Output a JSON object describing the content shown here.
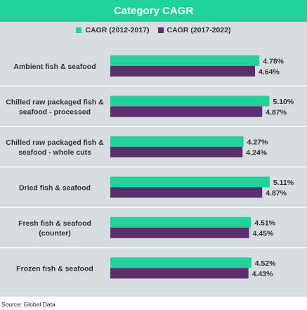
{
  "chart_data": {
    "type": "bar",
    "orientation": "horizontal",
    "title": "Category CAGR",
    "categories": [
      [
        "Ambient fish & seafood"
      ],
      [
        "Chilled raw packaged fish &",
        "seafood - processed"
      ],
      [
        "Chilled raw packaged fish &",
        "seafood - whole cuts"
      ],
      [
        "Dried fish & seafood"
      ],
      [
        "Fresh fish & seafood",
        "(counter)"
      ],
      [
        "Frozen fish & seafood"
      ]
    ],
    "series": [
      {
        "name": "CAGR (2012-2017)",
        "color": "#1ed39a",
        "values": [
          4.78,
          5.1,
          4.27,
          5.11,
          4.51,
          4.52
        ],
        "labels": [
          "4.78%",
          "5.10%",
          "4.27%",
          "5.11%",
          "4.51%",
          "4.52%"
        ]
      },
      {
        "name": "CAGR (2017-2022)",
        "color": "#5b2f6e",
        "values": [
          4.64,
          4.87,
          4.24,
          4.87,
          4.45,
          4.43
        ],
        "labels": [
          "4.64%",
          "4.87%",
          "4.24%",
          "4.87%",
          "4.45%",
          "4.43%"
        ]
      }
    ],
    "xlabel": "",
    "ylabel": "",
    "grid": false,
    "legend": "top"
  },
  "source": "Source: Global Data",
  "colors": {
    "background": "#d7dcde",
    "title_bar": "#1ed39a",
    "separator": "#ffffff"
  }
}
